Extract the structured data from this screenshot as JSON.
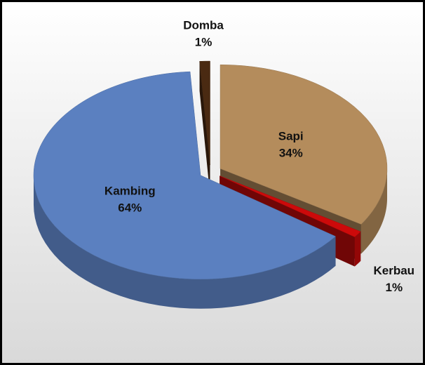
{
  "chart_data": {
    "type": "pie",
    "categories": [
      "Sapi",
      "Kerbau",
      "Kambing",
      "Domba"
    ],
    "values": [
      34,
      1,
      64,
      1
    ],
    "value_labels": [
      "34%",
      "1%",
      "64%",
      "1%"
    ],
    "colors": [
      "#b48c5c",
      "#cc0a0a",
      "#5b80c0",
      "#4a2a12"
    ]
  }
}
